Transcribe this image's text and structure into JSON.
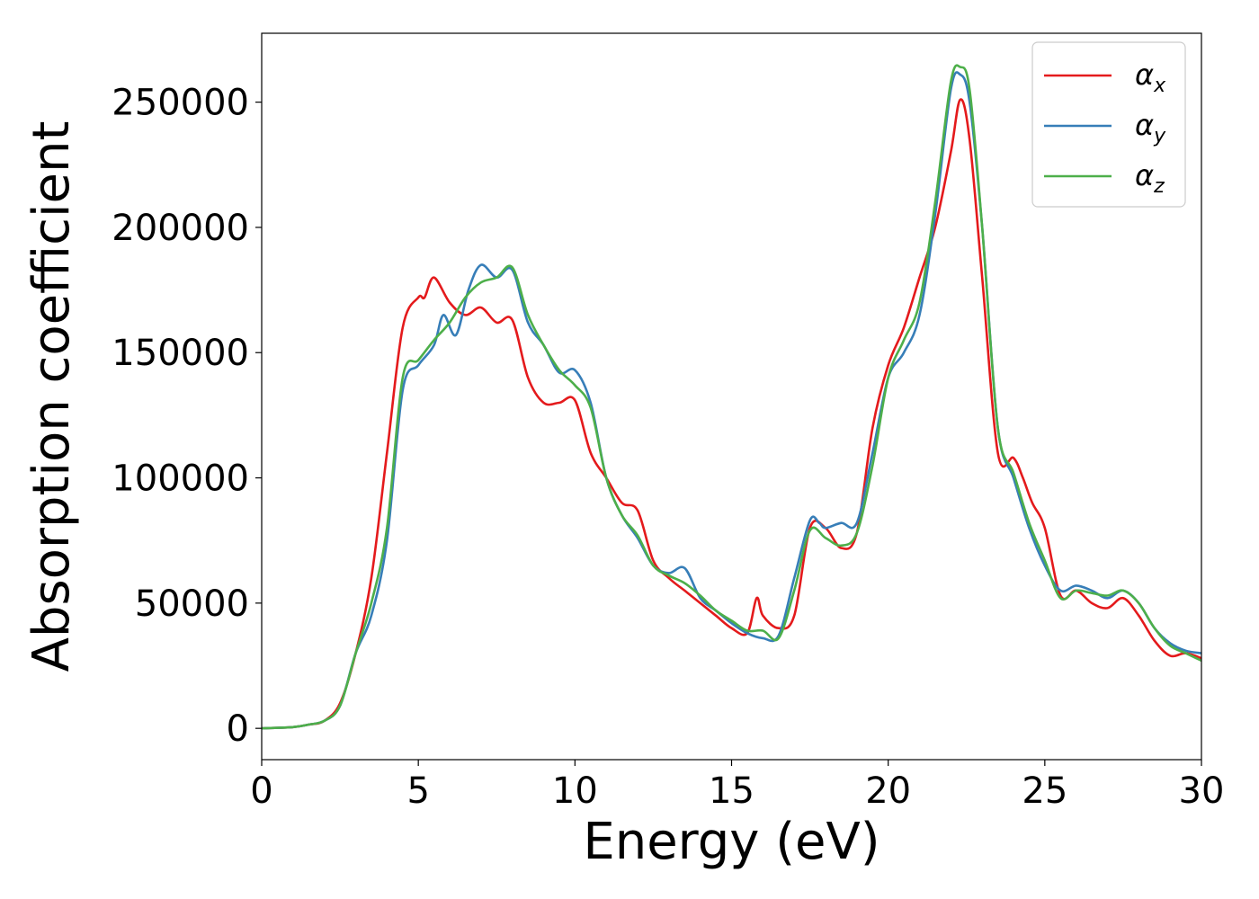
{
  "chart_data": {
    "type": "line",
    "title": "",
    "xlabel": "Energy (eV)",
    "ylabel": "Absorption coefficient",
    "xlim": [
      0,
      30
    ],
    "ylim": [
      -12500,
      277500
    ],
    "xticks": [
      0,
      5,
      10,
      15,
      20,
      25,
      30
    ],
    "yticks": [
      0,
      50000,
      100000,
      150000,
      200000,
      250000
    ],
    "grid": false,
    "legend_position": "top-right",
    "series": [
      {
        "name": "αx",
        "label_base": "α",
        "label_sub": "x",
        "color": "#e41a1c",
        "x": [
          0,
          1,
          1.5,
          2,
          2.5,
          3,
          3.5,
          4,
          4.5,
          5,
          5.2,
          5.5,
          6,
          6.5,
          7,
          7.5,
          8,
          8.5,
          9,
          9.5,
          10,
          10.5,
          11,
          11.5,
          12,
          12.5,
          13,
          13.5,
          14,
          14.5,
          15,
          15.5,
          15.8,
          16,
          16.5,
          17,
          17.5,
          18,
          18.5,
          19,
          19.5,
          20,
          20.5,
          21,
          21.5,
          22,
          22.3,
          22.6,
          23,
          23.5,
          24,
          24.3,
          24.6,
          25,
          25.5,
          26,
          26.5,
          27,
          27.5,
          28,
          28.5,
          29,
          29.5,
          30
        ],
        "y": [
          0,
          500,
          1500,
          3000,
          10000,
          30000,
          60000,
          110000,
          160000,
          172000,
          172000,
          180000,
          170000,
          165000,
          168000,
          162000,
          163000,
          140000,
          130000,
          130000,
          131000,
          110000,
          100000,
          90000,
          87000,
          67000,
          60000,
          55000,
          50000,
          45000,
          40000,
          38000,
          52000,
          45000,
          40000,
          45000,
          80000,
          80000,
          72000,
          78000,
          120000,
          145000,
          160000,
          180000,
          200000,
          230000,
          251000,
          235000,
          180000,
          110000,
          108000,
          100000,
          90000,
          80000,
          53000,
          55000,
          50000,
          48000,
          52000,
          45000,
          35000,
          29000,
          30000,
          28000
        ]
      },
      {
        "name": "αy",
        "label_base": "α",
        "label_sub": "y",
        "color": "#377eb8",
        "x": [
          0,
          1,
          1.5,
          2,
          2.5,
          3,
          3.5,
          4,
          4.5,
          5,
          5.5,
          5.8,
          6.2,
          6.6,
          7,
          7.5,
          8,
          8.5,
          9,
          9.5,
          10,
          10.5,
          11,
          11.5,
          12,
          12.5,
          13,
          13.5,
          14,
          14.5,
          15,
          15.5,
          16,
          16.5,
          17,
          17.5,
          17.8,
          18,
          18.5,
          19,
          19.5,
          20,
          20.5,
          21,
          21.5,
          22,
          22.3,
          22.6,
          23,
          23.5,
          24,
          24.5,
          25,
          25.5,
          26,
          26.5,
          27,
          27.5,
          28,
          28.5,
          29,
          29.5,
          30
        ],
        "y": [
          0,
          500,
          1500,
          3000,
          9000,
          30000,
          45000,
          75000,
          135000,
          145000,
          153000,
          165000,
          157000,
          175000,
          185000,
          180000,
          183000,
          162000,
          153000,
          142000,
          143000,
          130000,
          100000,
          85000,
          76000,
          65000,
          62000,
          64000,
          52000,
          47000,
          42000,
          38000,
          36000,
          37000,
          60000,
          83000,
          82000,
          80000,
          82000,
          82000,
          110000,
          140000,
          150000,
          165000,
          205000,
          255000,
          261000,
          250000,
          200000,
          120000,
          100000,
          80000,
          65000,
          55000,
          57000,
          55000,
          52000,
          55000,
          50000,
          40000,
          34000,
          31000,
          30000
        ]
      },
      {
        "name": "αz",
        "label_base": "α",
        "label_sub": "z",
        "color": "#4daf4a",
        "x": [
          0,
          1,
          1.5,
          2,
          2.5,
          3,
          3.5,
          4,
          4.5,
          5,
          5.5,
          6,
          6.5,
          7,
          7.5,
          8,
          8.5,
          9,
          9.5,
          10,
          10.5,
          11,
          11.5,
          12,
          12.5,
          13,
          13.5,
          14,
          14.5,
          15,
          15.5,
          16,
          16.5,
          17,
          17.5,
          18,
          18.5,
          19,
          19.5,
          20,
          20.5,
          21,
          21.5,
          22,
          22.3,
          22.6,
          23,
          23.5,
          24,
          24.5,
          25,
          25.5,
          26,
          26.5,
          27,
          27.5,
          28,
          28.5,
          29,
          29.5,
          30
        ],
        "y": [
          0,
          500,
          1500,
          3000,
          9000,
          30000,
          50000,
          80000,
          140000,
          147000,
          155000,
          162000,
          172000,
          178000,
          180000,
          184000,
          165000,
          153000,
          143000,
          137000,
          128000,
          100000,
          85000,
          77000,
          65000,
          61000,
          58000,
          53000,
          47000,
          43000,
          39000,
          39000,
          36000,
          55000,
          79000,
          76000,
          73000,
          78000,
          105000,
          140000,
          155000,
          170000,
          210000,
          258000,
          264000,
          255000,
          200000,
          120000,
          102000,
          82000,
          67000,
          52000,
          55000,
          54000,
          53000,
          55000,
          50000,
          40000,
          33000,
          30000,
          27000
        ]
      }
    ]
  }
}
